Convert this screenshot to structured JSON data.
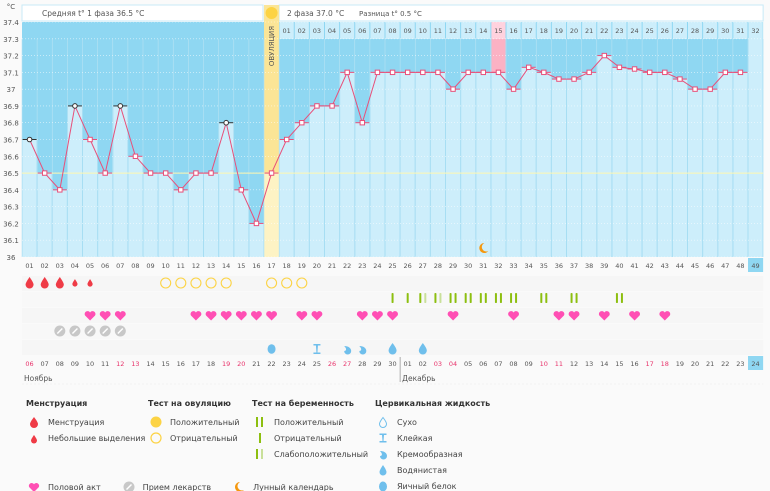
{
  "chart_data": {
    "type": "line",
    "title": "",
    "ylabel": "°C",
    "ylim": [
      36.0,
      37.4
    ],
    "yticks": [
      "36",
      "36.1",
      "36.2",
      "36.3",
      "36.4",
      "36.5",
      "36.6",
      "36.7",
      "36.8",
      "36.9",
      "37",
      "37.1",
      "37.2",
      "37.3",
      "37.4"
    ],
    "cycle_days": [
      "01",
      "02",
      "03",
      "04",
      "05",
      "06",
      "07",
      "08",
      "09",
      "10",
      "11",
      "12",
      "13",
      "14",
      "15",
      "16",
      "17",
      "18",
      "19",
      "20",
      "21",
      "22",
      "23",
      "24",
      "25",
      "26",
      "27",
      "28",
      "29",
      "30",
      "31",
      "32",
      "33",
      "34",
      "35",
      "36",
      "37",
      "38",
      "39",
      "40",
      "41",
      "42",
      "43",
      "44",
      "45",
      "46",
      "47",
      "48",
      "49"
    ],
    "phase2_days": [
      "01",
      "02",
      "03",
      "04",
      "05",
      "06",
      "07",
      "08",
      "09",
      "10",
      "11",
      "12",
      "13",
      "14",
      "15",
      "16",
      "17",
      "18",
      "19",
      "20",
      "21",
      "22",
      "23",
      "24",
      "25",
      "26",
      "27",
      "28",
      "29",
      "30",
      "31",
      "32"
    ],
    "temperatures": [
      36.7,
      36.5,
      36.4,
      36.9,
      36.7,
      36.5,
      36.9,
      36.6,
      36.5,
      36.5,
      36.4,
      36.5,
      36.5,
      36.8,
      36.4,
      36.2,
      36.5,
      36.7,
      36.8,
      36.9,
      36.9,
      37.1,
      36.8,
      37.1,
      37.1,
      37.1,
      37.1,
      37.1,
      37.0,
      37.1,
      37.1,
      37.1,
      37.0,
      37.13,
      37.1,
      37.06,
      37.06,
      37.1,
      37.2,
      37.13,
      37.12,
      37.1,
      37.1,
      37.06,
      37.0,
      37.0,
      37.1,
      37.1,
      null
    ],
    "excluded_points": [
      1,
      4,
      7,
      14
    ],
    "coverline": 36.5,
    "ovulation_day": 17,
    "ovulation_label": "ОВУЛЯЦИЯ",
    "highlighted_phase2_day": 15,
    "today_cycle_day": 49,
    "moon_day": 31,
    "phase1_summary": "Средняя t° 1 фаза 36.5 °C",
    "phase2_summary": "2 фаза 37.0 °C",
    "diff_summary": "Разница t° 0.5 °C",
    "dates": [
      "06",
      "07",
      "08",
      "09",
      "10",
      "11",
      "12",
      "13",
      "14",
      "15",
      "16",
      "17",
      "18",
      "19",
      "20",
      "21",
      "22",
      "23",
      "24",
      "25",
      "26",
      "27",
      "28",
      "29",
      "30",
      "01",
      "02",
      "03",
      "04",
      "05",
      "06",
      "07",
      "08",
      "09",
      "10",
      "11",
      "12",
      "13",
      "14",
      "15",
      "16",
      "17",
      "18",
      "19",
      "20",
      "21",
      "22",
      "23",
      "24"
    ],
    "weekend_dates_idx": [
      0,
      6,
      7,
      13,
      14,
      20,
      21,
      27,
      28,
      34,
      35,
      41,
      42
    ],
    "months": [
      {
        "label": "Ноябрь",
        "start": 1
      },
      {
        "label": "Декабрь",
        "start": 26
      }
    ],
    "menstruation": [
      {
        "day": 1,
        "type": "heavy"
      },
      {
        "day": 2,
        "type": "heavy"
      },
      {
        "day": 3,
        "type": "heavy"
      },
      {
        "day": 4,
        "type": "light"
      },
      {
        "day": 5,
        "type": "light"
      }
    ],
    "ovulation_tests": [
      {
        "day": 10,
        "result": "negative"
      },
      {
        "day": 11,
        "result": "negative"
      },
      {
        "day": 12,
        "result": "negative"
      },
      {
        "day": 13,
        "result": "negative"
      },
      {
        "day": 14,
        "result": "negative"
      },
      {
        "day": 17,
        "result": "negative"
      },
      {
        "day": 18,
        "result": "negative"
      },
      {
        "day": 19,
        "result": "negative"
      }
    ],
    "pregnancy_tests": [
      {
        "day": 25,
        "result": "negative"
      },
      {
        "day": 26,
        "result": "negative"
      },
      {
        "day": 27,
        "result": "weak"
      },
      {
        "day": 28,
        "result": "weak"
      },
      {
        "day": 29,
        "result": "positive"
      },
      {
        "day": 30,
        "result": "positive"
      },
      {
        "day": 31,
        "result": "positive"
      },
      {
        "day": 32,
        "result": "positive"
      },
      {
        "day": 33,
        "result": "positive"
      },
      {
        "day": 35,
        "result": "positive"
      },
      {
        "day": 37,
        "result": "positive"
      },
      {
        "day": 40,
        "result": "positive"
      }
    ],
    "intercourse": [
      5,
      6,
      7,
      12,
      13,
      14,
      15,
      16,
      17,
      19,
      20,
      23,
      24,
      25,
      29,
      33,
      36,
      37,
      39,
      41,
      43
    ],
    "medication": [
      3,
      4,
      5,
      6,
      7
    ],
    "cervical_fluid": [
      {
        "day": 17,
        "type": "eggwhite"
      },
      {
        "day": 20,
        "type": "sticky"
      },
      {
        "day": 22,
        "type": "creamy"
      },
      {
        "day": 23,
        "type": "creamy"
      },
      {
        "day": 25,
        "type": "watery"
      },
      {
        "day": 27,
        "type": "watery"
      }
    ],
    "today_date": "24"
  },
  "colors": {
    "bg_top": "#8fd7f2",
    "bar": "#cdeefb",
    "ovulation": "#fbe596",
    "line": "#e8507a",
    "heart": "#ff4fb4",
    "blood": "#ef3b46",
    "preg": "#8dbf10",
    "fluid": "#6fbfec",
    "moon": "#f5980f",
    "weekend": "#e8336b"
  },
  "legend": {
    "menstruation": {
      "title": "Менструация",
      "items": [
        "Менструация",
        "Небольшие выделения"
      ]
    },
    "ovulation_test": {
      "title": "Тест на овуляцию",
      "items": [
        "Положительный",
        "Отрицательный"
      ]
    },
    "pregnancy_test": {
      "title": "Тест на беременность",
      "items": [
        "Положительный",
        "Отрицательный",
        "Слабоположительный"
      ]
    },
    "cervical_fluid": {
      "title": "Цервикальная жидкость",
      "items": [
        "Сухо",
        "Клейкая",
        "Кремообразная",
        "Водянистая",
        "Яичный белок"
      ]
    },
    "bottom": [
      "Половой акт",
      "Прием лекарств",
      "Лунный календарь"
    ]
  }
}
